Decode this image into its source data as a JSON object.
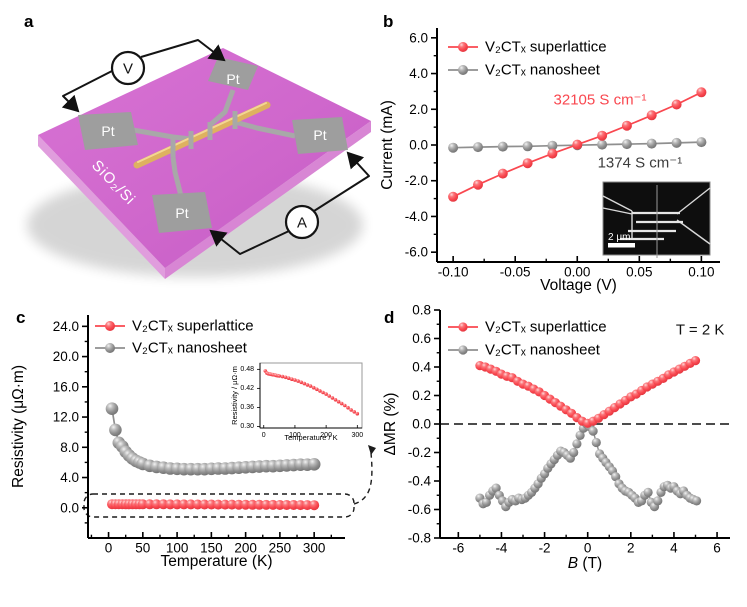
{
  "figure": {
    "panel_labels": {
      "a": "a",
      "b": "b",
      "c": "c",
      "d": "d"
    }
  },
  "colors": {
    "superlattice_red": "#f9474f",
    "nanosheet_gray": "#8f8f8f",
    "annotation_dark": "#3d3d3d",
    "substrate_purple": "#cf67cc",
    "substrate_side_pink": "#e09ddd",
    "electrode_gray": "#9e9e9e",
    "nanowire_gold": "#deb160"
  },
  "panel_a": {
    "substrate_label": "SiO₂/Si",
    "electrode_label": "Pt",
    "voltmeter_label": "V",
    "ammeter_label": "A"
  },
  "chart_data": [
    {
      "id": "b",
      "type": "scatter-line",
      "xlabel": "Voltage (V)",
      "ylabel": "Current (mA)",
      "xlim": [
        -0.113,
        0.115
      ],
      "ylim": [
        -6.55,
        6.55
      ],
      "xticks": {
        "values": [
          -0.1,
          -0.05,
          0,
          0.05,
          0.1
        ],
        "labels": [
          "-0.10",
          "-0.05",
          "0.00",
          "0.05",
          "0.10"
        ]
      },
      "yticks": {
        "values": [
          6,
          4,
          2,
          0,
          -2,
          -4,
          -6
        ],
        "labels": [
          "6.0",
          "4.0",
          "2.0",
          "0.0",
          "-2.0",
          "-4.0",
          "-6.0"
        ]
      },
      "legend": [
        "V₂CTₓ superlattice",
        "V₂CTₓ nanosheet"
      ],
      "series": [
        {
          "name": "V₂CTₓ superlattice",
          "color": "red",
          "x": [
            -0.1,
            -0.08,
            -0.06,
            -0.04,
            -0.02,
            0.0,
            0.02,
            0.04,
            0.06,
            0.08,
            0.1
          ],
          "y": [
            -2.9,
            -2.22,
            -1.6,
            -1.02,
            -0.48,
            0.02,
            0.52,
            1.08,
            1.66,
            2.27,
            2.95
          ]
        },
        {
          "name": "V₂CTₓ nanosheet",
          "color": "gray",
          "x": [
            -0.1,
            -0.08,
            -0.06,
            -0.04,
            -0.02,
            0.0,
            0.02,
            0.04,
            0.06,
            0.08,
            0.1
          ],
          "y": [
            -0.15,
            -0.12,
            -0.09,
            -0.07,
            -0.04,
            -0.01,
            0.02,
            0.05,
            0.08,
            0.12,
            0.16
          ]
        }
      ],
      "annotations": [
        {
          "text": "32105 S cm⁻¹",
          "color": "red",
          "fx": 0.576,
          "fy": 0.308,
          "size": 15
        },
        {
          "text": "1374 S cm⁻¹",
          "color": "dark",
          "fx": 0.717,
          "fy": 0.577,
          "size": 15
        }
      ],
      "inset": {
        "scalebar_label": "2 μm"
      }
    },
    {
      "id": "c",
      "type": "scatter-line",
      "xlabel": "Temperature (K)",
      "ylabel": "Resistivity (μΩ·m)",
      "xlim": [
        -30,
        345
      ],
      "ylim": [
        -4,
        25.5
      ],
      "xticks": {
        "values": [
          0,
          50,
          100,
          150,
          200,
          250,
          300
        ],
        "labels": [
          "0",
          "50",
          "100",
          "150",
          "200",
          "250",
          "300"
        ]
      },
      "yticks": {
        "values": [
          24,
          20,
          16,
          12,
          8,
          4,
          0
        ],
        "labels": [
          "24.0",
          "20.0",
          "16.0",
          "12.0",
          "8.0",
          "4.0",
          "0.0"
        ]
      },
      "legend": [
        "V₂CTₓ superlattice",
        "V₂CTₓ nanosheet"
      ],
      "series": [
        {
          "name": "V₂CTₓ superlattice",
          "color": "red",
          "x": [
            5,
            10,
            15,
            20,
            25,
            30,
            35,
            40,
            45,
            50,
            60,
            70,
            80,
            90,
            100,
            110,
            120,
            130,
            140,
            150,
            160,
            170,
            180,
            190,
            200,
            210,
            220,
            230,
            240,
            250,
            260,
            270,
            280,
            290,
            300
          ],
          "y": [
            0.475,
            0.468,
            0.466,
            0.465,
            0.464,
            0.463,
            0.462,
            0.461,
            0.46,
            0.459,
            0.457,
            0.455,
            0.452,
            0.449,
            0.446,
            0.443,
            0.439,
            0.435,
            0.431,
            0.427,
            0.422,
            0.417,
            0.412,
            0.407,
            0.402,
            0.396,
            0.39,
            0.384,
            0.378,
            0.372,
            0.366,
            0.359,
            0.352,
            0.346,
            0.34
          ]
        },
        {
          "name": "V₂CTₓ nanosheet",
          "color": "gray",
          "x": [
            5,
            10,
            15,
            20,
            25,
            30,
            35,
            40,
            45,
            50,
            60,
            70,
            80,
            90,
            100,
            110,
            120,
            130,
            140,
            150,
            160,
            170,
            180,
            190,
            200,
            210,
            220,
            230,
            240,
            250,
            260,
            270,
            280,
            290,
            300
          ],
          "y": [
            13.1,
            10.3,
            8.6,
            8.1,
            7.4,
            6.9,
            6.5,
            6.2,
            6.0,
            5.8,
            5.55,
            5.4,
            5.3,
            5.2,
            5.15,
            5.1,
            5.1,
            5.1,
            5.1,
            5.15,
            5.2,
            5.2,
            5.25,
            5.3,
            5.35,
            5.4,
            5.45,
            5.5,
            5.5,
            5.55,
            5.6,
            5.65,
            5.7,
            5.7,
            5.75
          ]
        }
      ],
      "annotations": []
    },
    {
      "id": "c_inset",
      "type": "scatter",
      "xlabel": "Temperature / K",
      "ylabel": "Resistivity / μΩ·m",
      "xlim": [
        -12,
        315
      ],
      "ylim": [
        0.295,
        0.5
      ],
      "xticks": {
        "values": [
          0,
          100,
          200,
          300
        ],
        "labels": [
          "0",
          "100",
          "200",
          "300"
        ]
      },
      "yticks": {
        "values": [
          0.48,
          0.42,
          0.36,
          0.3
        ],
        "labels": [
          "0.48",
          "0.42",
          "0.36",
          "0.30"
        ]
      },
      "series": [
        {
          "name": "V₂CTₓ superlattice",
          "color": "red",
          "x": [
            5,
            10,
            15,
            20,
            25,
            30,
            35,
            40,
            45,
            50,
            60,
            70,
            80,
            90,
            100,
            110,
            120,
            130,
            140,
            150,
            160,
            170,
            180,
            190,
            200,
            210,
            220,
            230,
            240,
            250,
            260,
            270,
            280,
            290,
            300
          ],
          "y": [
            0.475,
            0.468,
            0.466,
            0.465,
            0.464,
            0.463,
            0.462,
            0.461,
            0.46,
            0.459,
            0.457,
            0.455,
            0.452,
            0.449,
            0.446,
            0.443,
            0.439,
            0.435,
            0.431,
            0.427,
            0.422,
            0.417,
            0.412,
            0.407,
            0.402,
            0.396,
            0.39,
            0.384,
            0.378,
            0.372,
            0.366,
            0.359,
            0.352,
            0.346,
            0.34
          ]
        }
      ],
      "annotations": []
    },
    {
      "id": "d",
      "type": "scatter-line",
      "xlabel_rich": [
        {
          "text": "B",
          "italic": true
        },
        {
          "text": " (T)",
          "italic": false
        }
      ],
      "ylabel": "ΔMR (%)",
      "xlim": [
        -6.85,
        6.6
      ],
      "ylim": [
        -0.8,
        0.8
      ],
      "zero_line": true,
      "xticks": {
        "values": [
          -6,
          -4,
          -2,
          0,
          2,
          4,
          6
        ],
        "labels": [
          "-6",
          "-4",
          "-2",
          "0",
          "2",
          "4",
          "6"
        ]
      },
      "yticks": {
        "values": [
          0.8,
          0.6,
          0.4,
          0.2,
          0.0,
          -0.2,
          -0.4,
          -0.6,
          -0.8
        ],
        "labels": [
          "0.8",
          "0.6",
          "0.4",
          "0.2",
          "0.0",
          "-0.2",
          "-0.4",
          "-0.6",
          "-0.8"
        ]
      },
      "legend": [
        "V₂CTₓ superlattice",
        "V₂CTₓ nanosheet"
      ],
      "series": [
        {
          "name": "V₂CTₓ superlattice",
          "color": "red",
          "x": [
            -5,
            -4.75,
            -4.5,
            -4.25,
            -4,
            -3.75,
            -3.5,
            -3.25,
            -3,
            -2.75,
            -2.5,
            -2.25,
            -2,
            -1.75,
            -1.5,
            -1.25,
            -1,
            -0.75,
            -0.5,
            -0.25,
            0,
            0.25,
            0.5,
            0.75,
            1,
            1.25,
            1.5,
            1.75,
            2,
            2.25,
            2.5,
            2.75,
            3,
            3.25,
            3.5,
            3.75,
            4,
            4.25,
            4.5,
            4.75,
            5
          ],
          "y": [
            0.41,
            0.4,
            0.385,
            0.37,
            0.35,
            0.335,
            0.325,
            0.3,
            0.28,
            0.265,
            0.245,
            0.225,
            0.2,
            0.175,
            0.15,
            0.125,
            0.1,
            0.075,
            0.045,
            0.02,
            0.005,
            0.02,
            0.04,
            0.065,
            0.09,
            0.115,
            0.14,
            0.165,
            0.19,
            0.21,
            0.235,
            0.26,
            0.28,
            0.3,
            0.32,
            0.345,
            0.365,
            0.385,
            0.405,
            0.425,
            0.445
          ]
        },
        {
          "name": "V₂CTₓ nanosheet",
          "color": "gray",
          "x": [
            -5.0,
            -4.85,
            -4.7,
            -4.55,
            -4.4,
            -4.25,
            -4.1,
            -3.95,
            -3.8,
            -3.65,
            -3.5,
            -3.35,
            -3.2,
            -3.05,
            -2.9,
            -2.75,
            -2.6,
            -2.45,
            -2.3,
            -2.15,
            -2.0,
            -1.85,
            -1.7,
            -1.55,
            -1.4,
            -1.25,
            -1.1,
            -0.95,
            -0.8,
            -0.65,
            -0.5,
            -0.35,
            -0.2,
            -0.05,
            0.1,
            0.25,
            0.4,
            0.55,
            0.7,
            0.85,
            1.0,
            1.15,
            1.3,
            1.45,
            1.6,
            1.75,
            1.9,
            2.05,
            2.2,
            2.35,
            2.5,
            2.65,
            2.8,
            2.95,
            3.1,
            3.25,
            3.4,
            3.55,
            3.7,
            3.85,
            4.0,
            4.15,
            4.3,
            4.45,
            4.6,
            4.75,
            4.9,
            5.05
          ],
          "y": [
            -0.52,
            -0.56,
            -0.55,
            -0.5,
            -0.47,
            -0.45,
            -0.5,
            -0.54,
            -0.58,
            -0.55,
            -0.53,
            -0.54,
            -0.52,
            -0.53,
            -0.52,
            -0.5,
            -0.48,
            -0.45,
            -0.42,
            -0.38,
            -0.35,
            -0.31,
            -0.28,
            -0.25,
            -0.22,
            -0.19,
            -0.2,
            -0.22,
            -0.24,
            -0.2,
            -0.14,
            -0.08,
            -0.03,
            0.0,
            -0.02,
            -0.05,
            -0.13,
            -0.21,
            -0.24,
            -0.27,
            -0.3,
            -0.33,
            -0.37,
            -0.42,
            -0.45,
            -0.47,
            -0.48,
            -0.5,
            -0.52,
            -0.55,
            -0.54,
            -0.5,
            -0.48,
            -0.55,
            -0.58,
            -0.54,
            -0.48,
            -0.44,
            -0.43,
            -0.45,
            -0.44,
            -0.47,
            -0.49,
            -0.47,
            -0.5,
            -0.52,
            -0.53,
            -0.54
          ]
        }
      ],
      "annotations": [
        {
          "text": "T = 2 K",
          "color": "black",
          "fx": 0.897,
          "fy": 0.088,
          "size": 15
        }
      ]
    }
  ]
}
